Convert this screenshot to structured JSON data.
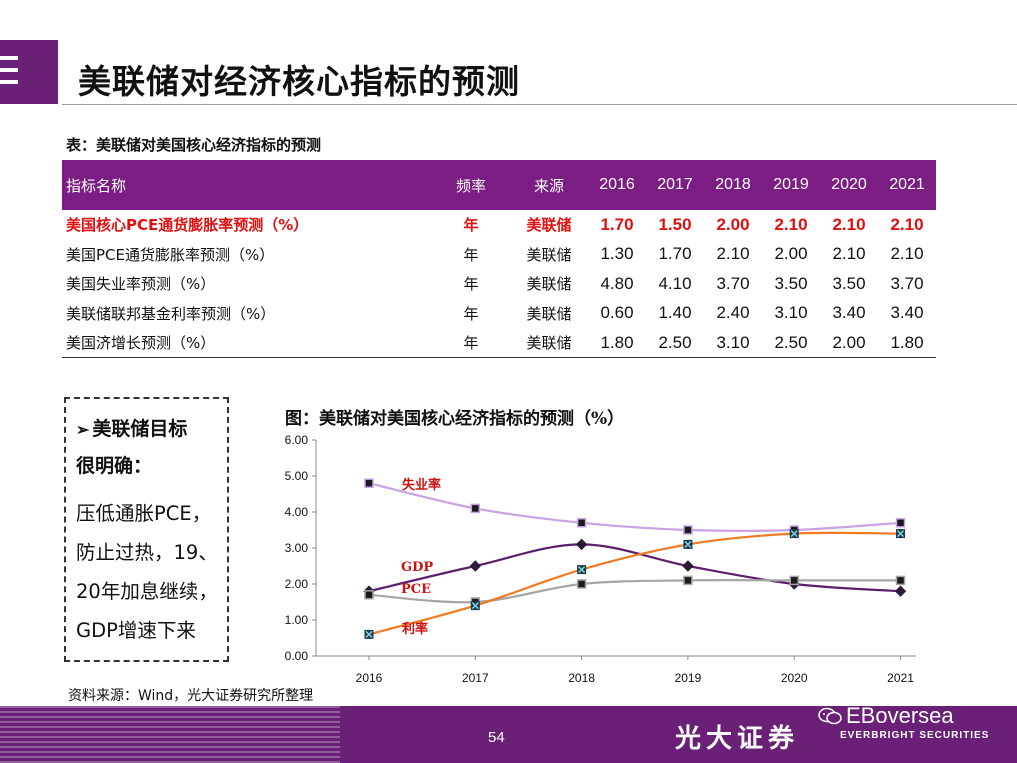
{
  "slide": {
    "title": "美联储对经济核心指标的预测",
    "page_number": "54",
    "brand_cn": "光大证券",
    "brand_en": "EVERBRIGHT SECURITIES",
    "watermark": "EBoversea"
  },
  "table": {
    "caption": "表：美联储对美国核心经济指标的预测",
    "headers": [
      "指标名称",
      "频率",
      "来源",
      "2016",
      "2017",
      "2018",
      "2019",
      "2020",
      "2021"
    ],
    "rows": [
      {
        "name": "美国核心PCE通货膨胀率预测（%）",
        "freq": "年",
        "source": "美联储",
        "values": [
          "1.70",
          "1.50",
          "2.00",
          "2.10",
          "2.10",
          "2.10"
        ],
        "highlight": true
      },
      {
        "name": "美国PCE通货膨胀率预测（%）",
        "freq": "年",
        "source": "美联储",
        "values": [
          "1.30",
          "1.70",
          "2.10",
          "2.00",
          "2.10",
          "2.10"
        ],
        "highlight": false
      },
      {
        "name": "美国失业率预测（%）",
        "freq": "年",
        "source": "美联储",
        "values": [
          "4.80",
          "4.10",
          "3.70",
          "3.50",
          "3.50",
          "3.70"
        ],
        "highlight": false
      },
      {
        "name": "美联储联邦基金利率预测（%）",
        "freq": "年",
        "source": "美联储",
        "values": [
          "0.60",
          "1.40",
          "2.40",
          "3.10",
          "3.40",
          "3.40"
        ],
        "highlight": false
      },
      {
        "name": "美国济增长预测（%）",
        "freq": "年",
        "source": "美联储",
        "values": [
          "1.80",
          "2.50",
          "3.10",
          "2.50",
          "2.00",
          "1.80"
        ],
        "highlight": false
      }
    ]
  },
  "note": {
    "heading_line1": "美联储目标",
    "heading_line2": "很明确：",
    "body_lines": [
      "压低通胀PCE，",
      "防止过热，19、",
      "20年加息继续，",
      "GDP增速下来"
    ]
  },
  "source_note": "资料来源：Wind，光大证券研究所整理",
  "chart_data": {
    "type": "line",
    "title": "图：美联储对美国核心经济指标的预测（%）",
    "x": [
      "2016",
      "2017",
      "2018",
      "2019",
      "2020",
      "2021"
    ],
    "ylim": [
      0,
      6
    ],
    "yticks": [
      "0.00",
      "1.00",
      "2.00",
      "3.00",
      "4.00",
      "5.00",
      "6.00"
    ],
    "grid": false,
    "series": [
      {
        "name": "失业率",
        "values": [
          4.8,
          4.1,
          3.7,
          3.5,
          3.5,
          3.7
        ],
        "color": "#c9a2e6",
        "marker": "square"
      },
      {
        "name": "GDP",
        "values": [
          1.8,
          2.5,
          3.1,
          2.5,
          2.0,
          1.8
        ],
        "color": "#5b1f6d",
        "marker": "diamond"
      },
      {
        "name": "PCE",
        "values": [
          1.7,
          1.5,
          2.0,
          2.1,
          2.1,
          2.1
        ],
        "color": "#a6a6a6",
        "marker": "square"
      },
      {
        "name": "利率",
        "values": [
          0.6,
          1.4,
          2.4,
          3.1,
          3.4,
          3.4
        ],
        "color": "#f07a22",
        "marker": "x-square"
      }
    ]
  },
  "colors": {
    "brand_purple": "#6b2077",
    "table_header": "#7b1d83",
    "highlight_red": "#e01010",
    "label_red": "#cc1111"
  }
}
